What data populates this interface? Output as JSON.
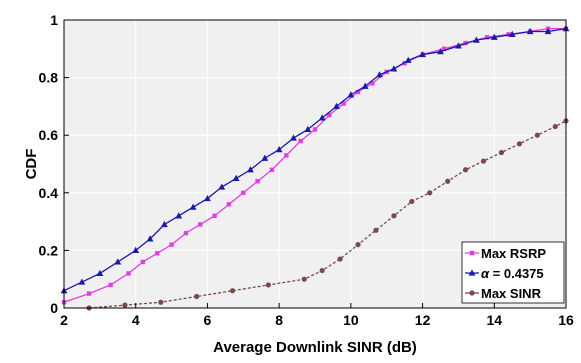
{
  "chart_data": {
    "type": "line",
    "xlabel": "Average Downlink SINR (dB)",
    "ylabel": "CDF",
    "xlim": [
      2,
      16
    ],
    "ylim": [
      0,
      1
    ],
    "xticks": [
      "2",
      "4",
      "6",
      "8",
      "10",
      "12",
      "14",
      "16"
    ],
    "yticks": [
      "0",
      "0.2",
      "0.4",
      "0.6",
      "0.8",
      "1"
    ],
    "grid": true,
    "legend_position": "bottom-right",
    "colors": {
      "background": "#f0f0f0",
      "grid": "#ffffff"
    },
    "series": [
      {
        "name": "Max RSRP",
        "color": "#e23fe2",
        "marker": "square",
        "line": "solid",
        "x": [
          2.0,
          2.7,
          3.3,
          3.8,
          4.2,
          4.6,
          5.0,
          5.4,
          5.8,
          6.2,
          6.6,
          7.0,
          7.4,
          7.8,
          8.2,
          8.6,
          9.0,
          9.4,
          9.8,
          10.2,
          10.6,
          11.0,
          11.5,
          12.0,
          12.6,
          13.2,
          13.8,
          14.4,
          15.0,
          15.5,
          16.0
        ],
        "y": [
          0.02,
          0.05,
          0.08,
          0.12,
          0.16,
          0.19,
          0.22,
          0.26,
          0.29,
          0.32,
          0.36,
          0.4,
          0.44,
          0.48,
          0.53,
          0.58,
          0.62,
          0.67,
          0.71,
          0.75,
          0.78,
          0.82,
          0.85,
          0.88,
          0.9,
          0.92,
          0.94,
          0.95,
          0.96,
          0.97,
          0.97
        ]
      },
      {
        "name": "α = 0.4375",
        "name_prefix": "α",
        "name_suffix": " = 0.4375",
        "color": "#1a1aa8",
        "marker": "triangle",
        "line": "solid",
        "x": [
          2.0,
          2.5,
          3.0,
          3.5,
          4.0,
          4.4,
          4.8,
          5.2,
          5.6,
          6.0,
          6.4,
          6.8,
          7.2,
          7.6,
          8.0,
          8.4,
          8.8,
          9.2,
          9.6,
          10.0,
          10.4,
          10.8,
          11.2,
          11.6,
          12.0,
          12.5,
          13.0,
          13.5,
          14.0,
          14.5,
          15.0,
          15.5,
          16.0
        ],
        "y": [
          0.06,
          0.09,
          0.12,
          0.16,
          0.2,
          0.24,
          0.29,
          0.32,
          0.35,
          0.38,
          0.42,
          0.45,
          0.48,
          0.52,
          0.55,
          0.59,
          0.62,
          0.66,
          0.7,
          0.74,
          0.77,
          0.81,
          0.83,
          0.86,
          0.88,
          0.89,
          0.91,
          0.93,
          0.94,
          0.95,
          0.96,
          0.96,
          0.97
        ]
      },
      {
        "name": "Max SINR",
        "color": "#7a4a4a",
        "marker": "circle",
        "line": "dashed",
        "x": [
          2.7,
          3.7,
          4.7,
          5.7,
          6.7,
          7.7,
          8.7,
          9.2,
          9.7,
          10.2,
          10.7,
          11.2,
          11.7,
          12.2,
          12.7,
          13.2,
          13.7,
          14.2,
          14.7,
          15.2,
          15.7,
          16.0
        ],
        "y": [
          0.0,
          0.01,
          0.02,
          0.04,
          0.06,
          0.08,
          0.1,
          0.13,
          0.17,
          0.22,
          0.27,
          0.32,
          0.37,
          0.4,
          0.44,
          0.48,
          0.51,
          0.54,
          0.57,
          0.6,
          0.63,
          0.65
        ]
      }
    ]
  }
}
